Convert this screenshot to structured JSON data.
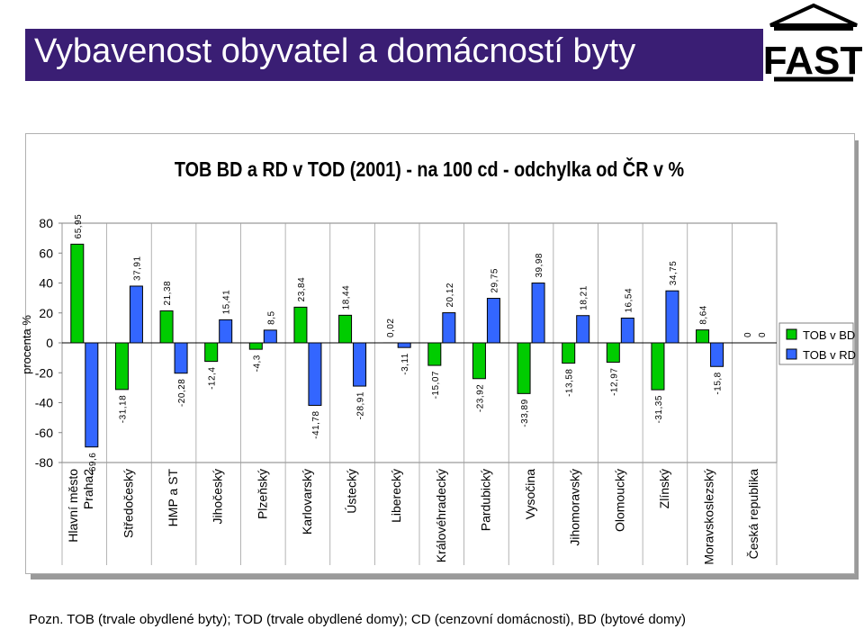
{
  "header": {
    "title": "Vybavenost obyvatel a domácností byty"
  },
  "logo": {
    "text": "FAST"
  },
  "chart_data": {
    "type": "bar",
    "title": "TOB BD a RD v TOD (2001) -  na 100 cd - odchylka od ČR v %",
    "ylabel": "procenta %",
    "xlabel": "",
    "ylim": [
      -80,
      80
    ],
    "yticks": [
      "80",
      "60",
      "40",
      "20",
      "0",
      "-20",
      "-40",
      "-60",
      "-80"
    ],
    "grid": false,
    "legend": "right",
    "categories": [
      "Hlavní město Praha2",
      "Středočeský",
      "HMP a ST",
      "Jihočeský",
      "Plzeňský",
      "Karlovarský",
      "Ústecký",
      "Liberecký",
      "Královéhradecký",
      "Pardubický",
      "Vysočina",
      "Jihomoravský",
      "Olomoucký",
      "Zlínský",
      "Moravskoslezský",
      "Česká republika"
    ],
    "category_lines": [
      [
        "Hlavní město",
        "Praha2"
      ],
      [
        "Středočeský"
      ],
      [
        "HMP a ST"
      ],
      [
        "Jihočeský"
      ],
      [
        "Plzeňský"
      ],
      [
        "Karlovarský"
      ],
      [
        "Ústecký"
      ],
      [
        "Liberecký"
      ],
      [
        "Královéhradecký"
      ],
      [
        "Pardubický"
      ],
      [
        "Vysočina"
      ],
      [
        "Jihomoravský"
      ],
      [
        "Olomoucký"
      ],
      [
        "Zlínský"
      ],
      [
        "Moravskoslezský"
      ],
      [
        "Česká republika"
      ]
    ],
    "series": [
      {
        "name": "TOB v BD",
        "color": "#00cc00",
        "values": [
          65.95,
          -31.18,
          21.38,
          -12.4,
          -4.3,
          23.84,
          18.44,
          0.02,
          -15.07,
          -23.92,
          -33.89,
          -13.58,
          -12.97,
          -31.35,
          8.64,
          0
        ],
        "labels": [
          "65,95",
          "-31,18",
          "21,38",
          "-12,4",
          "-4,3",
          "23,84",
          "18,44",
          "0,02",
          "-15,07",
          "-23,92",
          "-33,89",
          "-13,58",
          "-12,97",
          "-31,35",
          "8,64",
          "0"
        ]
      },
      {
        "name": "TOB v RD",
        "color": "#3366ff",
        "values": [
          -69.6,
          37.91,
          -20.28,
          15.41,
          8.5,
          -41.78,
          -28.91,
          -3.11,
          20.12,
          29.75,
          39.98,
          18.21,
          16.54,
          34.75,
          -15.8,
          0
        ],
        "labels": [
          "-69,6",
          "37,91",
          "-20,28",
          "15,41",
          "8,5",
          "-41,78",
          "-28,91",
          "-3,11",
          "20,12",
          "29,75",
          "39,98",
          "18,21",
          "16,54",
          "34,75",
          "-15,8",
          "0"
        ]
      }
    ]
  },
  "footnote": "Pozn. TOB (trvale obydlené byty); TOD (trvale obydlené domy); CD (cenzovní domácnosti), BD (bytové domy)"
}
